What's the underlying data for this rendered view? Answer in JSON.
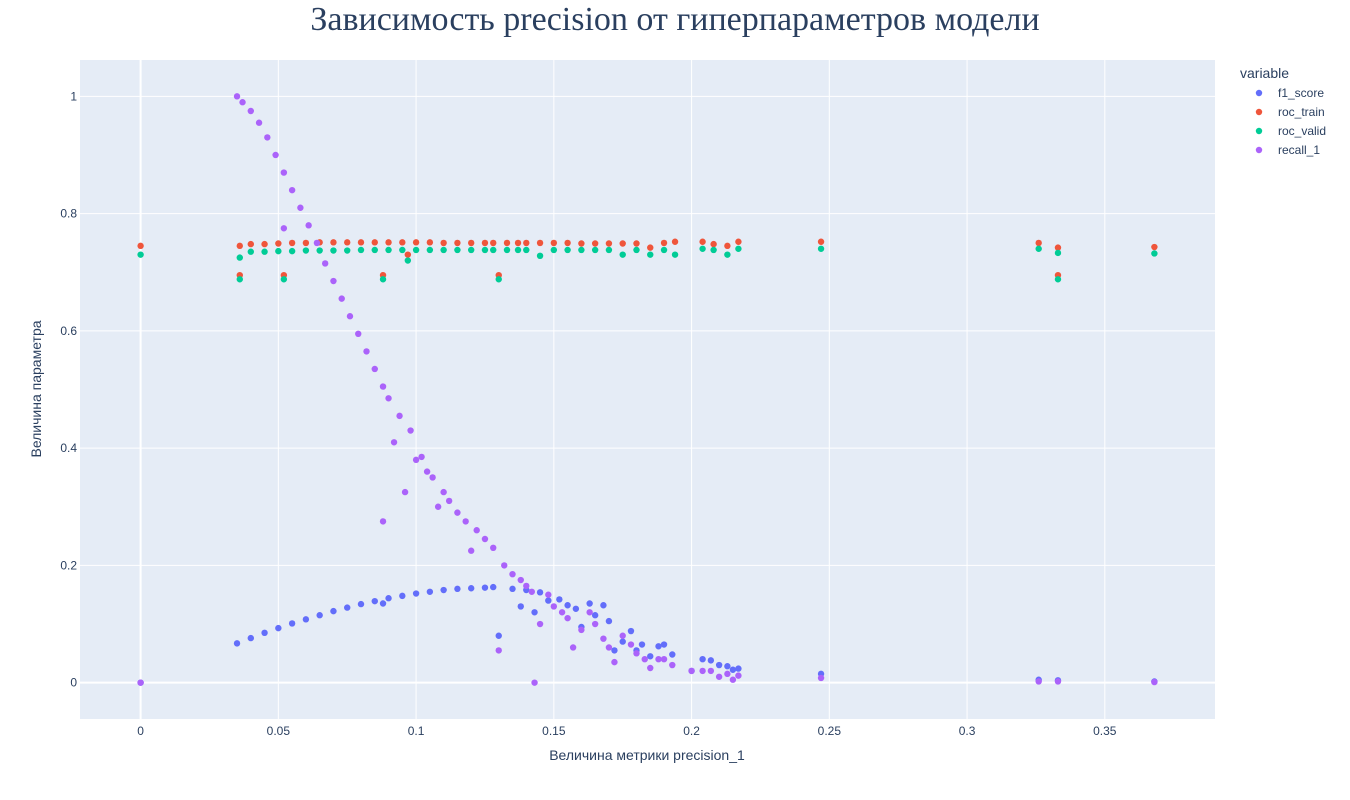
{
  "chart_data": {
    "type": "scatter",
    "title": "Зависимость precision от гиперпараметров модели",
    "xlabel": "Величина метрики precision_1",
    "ylabel": "Величина параметра",
    "xlim": [
      -0.022,
      0.39
    ],
    "ylim": [
      -0.062,
      1.062
    ],
    "x_ticks": [
      0,
      0.05,
      0.1,
      0.15,
      0.2,
      0.25,
      0.3,
      0.35
    ],
    "x_tick_labels": [
      "0",
      "0.05",
      "0.1",
      "0.15",
      "0.2",
      "0.25",
      "0.3",
      "0.35"
    ],
    "y_ticks": [
      0,
      0.2,
      0.4,
      0.6,
      0.8,
      1
    ],
    "y_tick_labels": [
      "0",
      "0.2",
      "0.4",
      "0.6",
      "0.8",
      "1"
    ],
    "grid": true,
    "legend_title": "variable",
    "legend_position": "top-right",
    "plot_background": "#e5ecf6",
    "series": [
      {
        "name": "f1_score",
        "color": "#636efa",
        "points": [
          [
            0,
            0
          ],
          [
            0.035,
            0.067
          ],
          [
            0.04,
            0.076
          ],
          [
            0.045,
            0.085
          ],
          [
            0.05,
            0.093
          ],
          [
            0.055,
            0.101
          ],
          [
            0.06,
            0.108
          ],
          [
            0.065,
            0.115
          ],
          [
            0.07,
            0.122
          ],
          [
            0.075,
            0.128
          ],
          [
            0.08,
            0.134
          ],
          [
            0.085,
            0.139
          ],
          [
            0.088,
            0.135
          ],
          [
            0.09,
            0.144
          ],
          [
            0.095,
            0.148
          ],
          [
            0.1,
            0.152
          ],
          [
            0.105,
            0.155
          ],
          [
            0.11,
            0.158
          ],
          [
            0.115,
            0.16
          ],
          [
            0.12,
            0.161
          ],
          [
            0.125,
            0.162
          ],
          [
            0.128,
            0.163
          ],
          [
            0.13,
            0.08
          ],
          [
            0.135,
            0.16
          ],
          [
            0.138,
            0.13
          ],
          [
            0.14,
            0.158
          ],
          [
            0.143,
            0.12
          ],
          [
            0.145,
            0.154
          ],
          [
            0.148,
            0.14
          ],
          [
            0.152,
            0.142
          ],
          [
            0.155,
            0.132
          ],
          [
            0.158,
            0.126
          ],
          [
            0.16,
            0.095
          ],
          [
            0.163,
            0.135
          ],
          [
            0.165,
            0.115
          ],
          [
            0.168,
            0.132
          ],
          [
            0.17,
            0.105
          ],
          [
            0.172,
            0.055
          ],
          [
            0.175,
            0.07
          ],
          [
            0.178,
            0.088
          ],
          [
            0.18,
            0.055
          ],
          [
            0.182,
            0.065
          ],
          [
            0.185,
            0.045
          ],
          [
            0.188,
            0.062
          ],
          [
            0.19,
            0.065
          ],
          [
            0.193,
            0.048
          ],
          [
            0.2,
            0.02
          ],
          [
            0.204,
            0.04
          ],
          [
            0.207,
            0.038
          ],
          [
            0.21,
            0.03
          ],
          [
            0.213,
            0.028
          ],
          [
            0.215,
            0.022
          ],
          [
            0.217,
            0.024
          ],
          [
            0.247,
            0.015
          ],
          [
            0.326,
            0.005
          ],
          [
            0.333,
            0.004
          ],
          [
            0.368,
            0.002
          ]
        ]
      },
      {
        "name": "roc_train",
        "color": "#ef553b",
        "points": [
          [
            0,
            0.745
          ],
          [
            0.036,
            0.745
          ],
          [
            0.036,
            0.695
          ],
          [
            0.04,
            0.748
          ],
          [
            0.045,
            0.748
          ],
          [
            0.05,
            0.749
          ],
          [
            0.052,
            0.695
          ],
          [
            0.055,
            0.75
          ],
          [
            0.06,
            0.75
          ],
          [
            0.065,
            0.751
          ],
          [
            0.07,
            0.751
          ],
          [
            0.075,
            0.751
          ],
          [
            0.08,
            0.751
          ],
          [
            0.085,
            0.751
          ],
          [
            0.088,
            0.695
          ],
          [
            0.09,
            0.751
          ],
          [
            0.095,
            0.751
          ],
          [
            0.097,
            0.73
          ],
          [
            0.1,
            0.751
          ],
          [
            0.105,
            0.751
          ],
          [
            0.11,
            0.75
          ],
          [
            0.115,
            0.75
          ],
          [
            0.12,
            0.75
          ],
          [
            0.125,
            0.75
          ],
          [
            0.128,
            0.75
          ],
          [
            0.13,
            0.695
          ],
          [
            0.133,
            0.75
          ],
          [
            0.137,
            0.75
          ],
          [
            0.14,
            0.75
          ],
          [
            0.145,
            0.75
          ],
          [
            0.15,
            0.75
          ],
          [
            0.155,
            0.75
          ],
          [
            0.16,
            0.749
          ],
          [
            0.165,
            0.749
          ],
          [
            0.17,
            0.749
          ],
          [
            0.175,
            0.749
          ],
          [
            0.18,
            0.749
          ],
          [
            0.185,
            0.742
          ],
          [
            0.19,
            0.75
          ],
          [
            0.194,
            0.752
          ],
          [
            0.204,
            0.752
          ],
          [
            0.208,
            0.748
          ],
          [
            0.213,
            0.745
          ],
          [
            0.217,
            0.752
          ],
          [
            0.247,
            0.752
          ],
          [
            0.326,
            0.75
          ],
          [
            0.333,
            0.742
          ],
          [
            0.333,
            0.695
          ],
          [
            0.368,
            0.743
          ]
        ]
      },
      {
        "name": "roc_valid",
        "color": "#00cc96",
        "points": [
          [
            0,
            0.73
          ],
          [
            0.036,
            0.725
          ],
          [
            0.036,
            0.688
          ],
          [
            0.04,
            0.735
          ],
          [
            0.045,
            0.735
          ],
          [
            0.05,
            0.736
          ],
          [
            0.052,
            0.688
          ],
          [
            0.055,
            0.736
          ],
          [
            0.06,
            0.737
          ],
          [
            0.065,
            0.737
          ],
          [
            0.07,
            0.737
          ],
          [
            0.075,
            0.737
          ],
          [
            0.08,
            0.738
          ],
          [
            0.085,
            0.738
          ],
          [
            0.088,
            0.688
          ],
          [
            0.09,
            0.738
          ],
          [
            0.095,
            0.738
          ],
          [
            0.097,
            0.72
          ],
          [
            0.1,
            0.738
          ],
          [
            0.105,
            0.738
          ],
          [
            0.11,
            0.738
          ],
          [
            0.115,
            0.738
          ],
          [
            0.12,
            0.738
          ],
          [
            0.125,
            0.738
          ],
          [
            0.128,
            0.738
          ],
          [
            0.13,
            0.688
          ],
          [
            0.133,
            0.738
          ],
          [
            0.137,
            0.738
          ],
          [
            0.14,
            0.738
          ],
          [
            0.145,
            0.728
          ],
          [
            0.15,
            0.738
          ],
          [
            0.155,
            0.738
          ],
          [
            0.16,
            0.738
          ],
          [
            0.165,
            0.738
          ],
          [
            0.17,
            0.738
          ],
          [
            0.175,
            0.73
          ],
          [
            0.18,
            0.738
          ],
          [
            0.185,
            0.73
          ],
          [
            0.19,
            0.738
          ],
          [
            0.194,
            0.73
          ],
          [
            0.204,
            0.74
          ],
          [
            0.208,
            0.738
          ],
          [
            0.213,
            0.73
          ],
          [
            0.217,
            0.74
          ],
          [
            0.247,
            0.74
          ],
          [
            0.326,
            0.74
          ],
          [
            0.333,
            0.733
          ],
          [
            0.333,
            0.688
          ],
          [
            0.368,
            0.732
          ]
        ]
      },
      {
        "name": "recall_1",
        "color": "#ab63fa",
        "points": [
          [
            0,
            0
          ],
          [
            0.035,
            1.0
          ],
          [
            0.037,
            0.99
          ],
          [
            0.04,
            0.975
          ],
          [
            0.043,
            0.955
          ],
          [
            0.046,
            0.93
          ],
          [
            0.049,
            0.9
          ],
          [
            0.052,
            0.87
          ],
          [
            0.052,
            0.775
          ],
          [
            0.055,
            0.84
          ],
          [
            0.058,
            0.81
          ],
          [
            0.061,
            0.78
          ],
          [
            0.064,
            0.75
          ],
          [
            0.067,
            0.715
          ],
          [
            0.07,
            0.685
          ],
          [
            0.073,
            0.655
          ],
          [
            0.076,
            0.625
          ],
          [
            0.079,
            0.595
          ],
          [
            0.082,
            0.565
          ],
          [
            0.085,
            0.535
          ],
          [
            0.088,
            0.505
          ],
          [
            0.088,
            0.275
          ],
          [
            0.09,
            0.485
          ],
          [
            0.092,
            0.41
          ],
          [
            0.094,
            0.455
          ],
          [
            0.096,
            0.325
          ],
          [
            0.098,
            0.43
          ],
          [
            0.1,
            0.38
          ],
          [
            0.102,
            0.385
          ],
          [
            0.104,
            0.36
          ],
          [
            0.106,
            0.35
          ],
          [
            0.108,
            0.3
          ],
          [
            0.11,
            0.325
          ],
          [
            0.112,
            0.31
          ],
          [
            0.115,
            0.29
          ],
          [
            0.118,
            0.275
          ],
          [
            0.12,
            0.225
          ],
          [
            0.122,
            0.26
          ],
          [
            0.125,
            0.245
          ],
          [
            0.128,
            0.23
          ],
          [
            0.13,
            0.055
          ],
          [
            0.132,
            0.2
          ],
          [
            0.135,
            0.185
          ],
          [
            0.138,
            0.175
          ],
          [
            0.14,
            0.165
          ],
          [
            0.142,
            0.155
          ],
          [
            0.143,
            0.0
          ],
          [
            0.145,
            0.1
          ],
          [
            0.148,
            0.15
          ],
          [
            0.15,
            0.13
          ],
          [
            0.153,
            0.12
          ],
          [
            0.155,
            0.11
          ],
          [
            0.157,
            0.06
          ],
          [
            0.16,
            0.09
          ],
          [
            0.163,
            0.12
          ],
          [
            0.165,
            0.1
          ],
          [
            0.168,
            0.075
          ],
          [
            0.17,
            0.06
          ],
          [
            0.172,
            0.035
          ],
          [
            0.175,
            0.08
          ],
          [
            0.178,
            0.065
          ],
          [
            0.18,
            0.05
          ],
          [
            0.183,
            0.04
          ],
          [
            0.185,
            0.025
          ],
          [
            0.188,
            0.04
          ],
          [
            0.19,
            0.04
          ],
          [
            0.193,
            0.03
          ],
          [
            0.2,
            0.02
          ],
          [
            0.204,
            0.02
          ],
          [
            0.207,
            0.02
          ],
          [
            0.21,
            0.01
          ],
          [
            0.213,
            0.015
          ],
          [
            0.215,
            0.005
          ],
          [
            0.217,
            0.012
          ],
          [
            0.247,
            0.008
          ],
          [
            0.326,
            0.002
          ],
          [
            0.333,
            0.002
          ],
          [
            0.368,
            0.001
          ]
        ]
      }
    ]
  }
}
